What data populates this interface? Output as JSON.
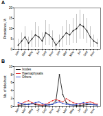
{
  "chart_data": [
    {
      "type": "line",
      "title": "A",
      "y_label": "Prevalence, %",
      "categories": [
        "Jan",
        null,
        "Mar",
        null,
        "May",
        null,
        "Jul",
        null,
        "Sep",
        null,
        "Nov",
        null,
        "Jan",
        null,
        "Mar",
        null,
        "May",
        null,
        "Jul",
        null,
        "Sep",
        null,
        "Nov",
        null
      ],
      "series": [
        {
          "name": "Prevalence",
          "color": "#000000",
          "marker": "circle",
          "values": [
            2,
            4,
            6,
            3,
            5,
            7,
            6,
            4,
            8,
            7,
            5,
            2,
            4,
            6,
            8,
            7,
            9,
            10,
            12,
            11,
            9,
            6,
            4,
            3
          ],
          "errors": [
            3,
            4,
            5,
            3,
            4,
            6,
            5,
            4,
            6,
            5,
            4,
            2,
            3,
            5,
            6,
            5,
            6,
            7,
            7,
            6,
            6,
            5,
            3,
            2
          ]
        }
      ],
      "ylim": [
        0,
        20
      ],
      "yticks": [
        0,
        5,
        10,
        15,
        20
      ]
    },
    {
      "type": "line",
      "title": "B",
      "y_label": "No. of ticks/host",
      "legend": "top-left",
      "categories": [
        "Jan",
        null,
        "Mar",
        null,
        "May",
        null,
        "Jul",
        null,
        "Sep",
        null,
        "Nov",
        null,
        "Jan",
        null,
        "Mar",
        null,
        "May",
        null,
        "Jul",
        null,
        "Sep",
        null,
        "Nov",
        null
      ],
      "series": [
        {
          "name": "Ixodes",
          "color": "#000000",
          "marker": "circle",
          "values": [
            0.3,
            0.4,
            0.5,
            0.6,
            0.8,
            0.5,
            0.4,
            0.3,
            0.3,
            0.5,
            0.6,
            1.5,
            8,
            3,
            1,
            0.5,
            0.4,
            0.3,
            0.3,
            0.4,
            0.5,
            0.6,
            0.5,
            0.4
          ]
        },
        {
          "name": "Haemaphysalis",
          "color": "#e03030",
          "marker": "circle",
          "values": [
            0.5,
            0.8,
            1.2,
            1.5,
            1.0,
            0.8,
            0.5,
            0.4,
            0.6,
            1.0,
            1.5,
            1.8,
            1.5,
            1.2,
            2,
            1.5,
            1.0,
            0.8,
            0.6,
            0.8,
            1.0,
            1.2,
            0.9,
            0.6
          ]
        },
        {
          "name": "Others",
          "color": "#3050d0",
          "marker": "circle",
          "values": [
            1,
            0.8,
            0.6,
            0.5,
            0.7,
            1.0,
            1.2,
            0.8,
            0.5,
            0.4,
            0.6,
            1.0,
            1.2,
            0.8,
            0.6,
            0.5,
            0.4,
            0.6,
            0.8,
            1.0,
            0.8,
            0.6,
            0.5,
            0.4
          ]
        }
      ],
      "ylim": [
        0,
        10
      ],
      "yticks": [
        0,
        2,
        4,
        6,
        8,
        10
      ]
    }
  ]
}
